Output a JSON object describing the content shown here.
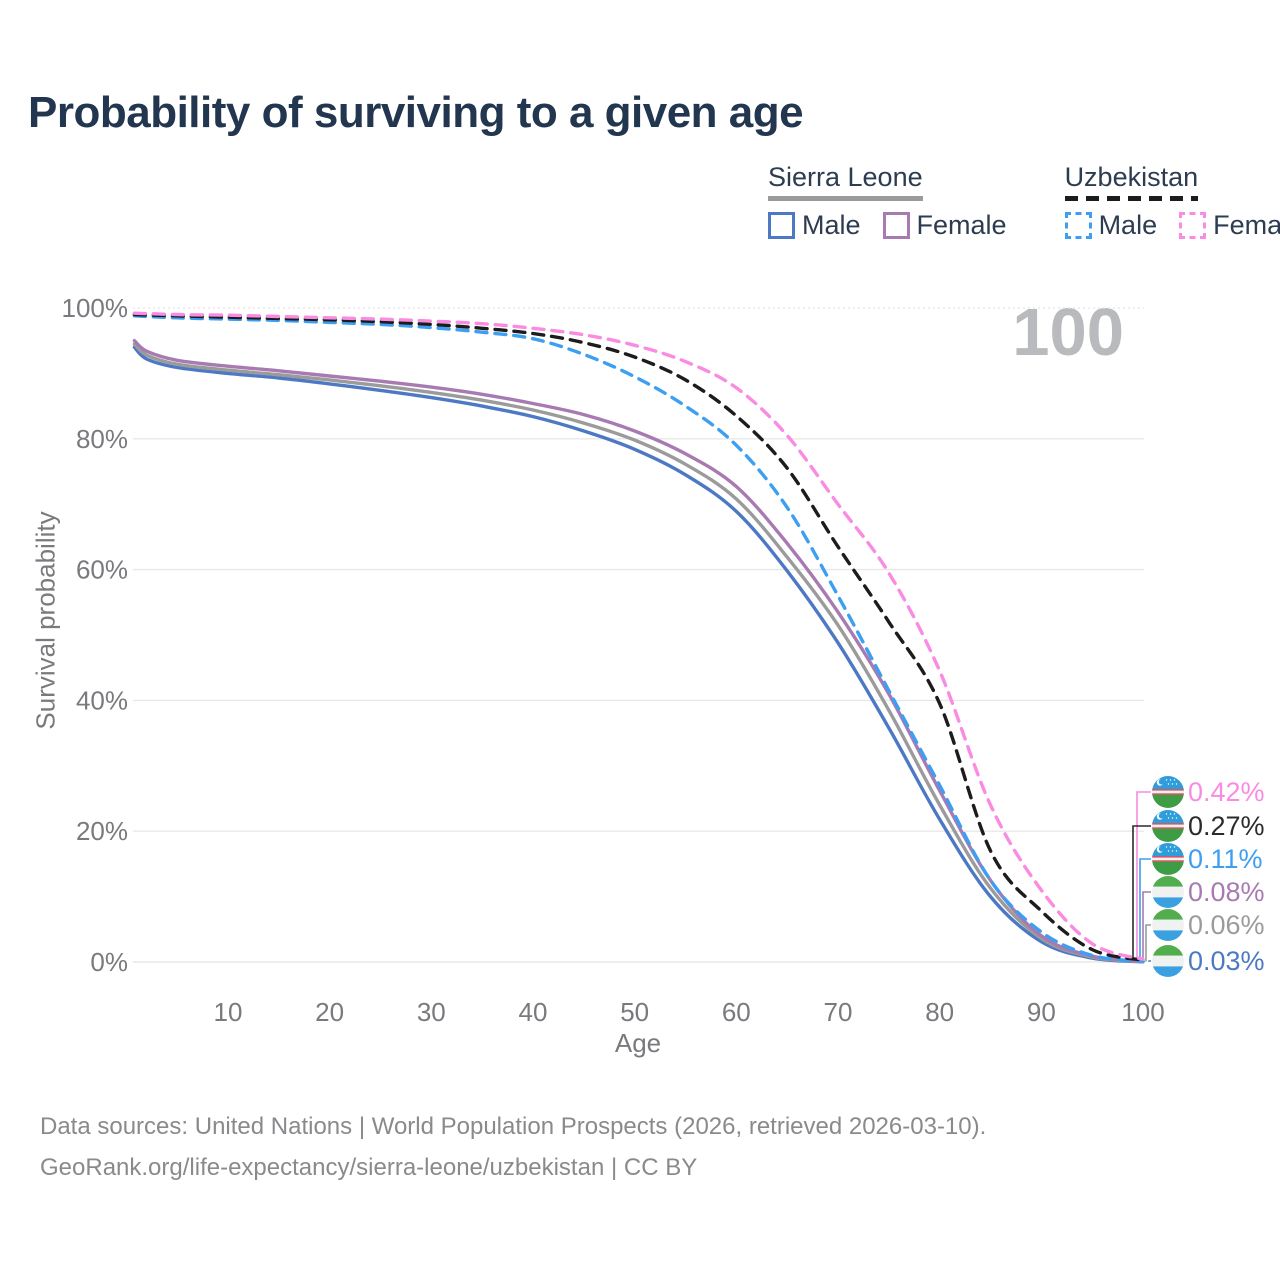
{
  "title": "Probability of surviving to a given age",
  "watermark_age": "100",
  "legend": {
    "groups": [
      {
        "name": "Sierra Leone",
        "underline_style": "solid",
        "underline_color": "#9b9b9b",
        "items": [
          {
            "label": "Male",
            "color": "#4d79c4",
            "dashed": false
          },
          {
            "label": "Female",
            "color": "#a87ab2",
            "dashed": false
          }
        ]
      },
      {
        "name": "Uzbekistan",
        "underline_style": "dashed",
        "underline_color": "#1c1c1c",
        "items": [
          {
            "label": "Male",
            "color": "#3d9ff2",
            "dashed": true
          },
          {
            "label": "Female",
            "color": "#f98ce2",
            "dashed": true
          }
        ]
      }
    ]
  },
  "axes": {
    "y_label": "Survival probability",
    "x_label": "Age",
    "y_ticks": [
      {
        "label": "100%",
        "value": 100
      },
      {
        "label": "80%",
        "value": 80
      },
      {
        "label": "60%",
        "value": 60
      },
      {
        "label": "40%",
        "value": 40
      },
      {
        "label": "20%",
        "value": 20
      },
      {
        "label": "0%",
        "value": 0
      }
    ],
    "x_ticks": [
      10,
      20,
      30,
      40,
      50,
      60,
      70,
      80,
      90,
      100
    ]
  },
  "chart_data": {
    "type": "line",
    "title": "Probability of surviving to a given age",
    "xlabel": "Age",
    "ylabel": "Survival probability",
    "xlim": [
      0,
      100
    ],
    "ylim": [
      0,
      100
    ],
    "grid": true,
    "legend_position": "top-right",
    "series": [
      {
        "name": "Sierra Leone Male",
        "country": "Sierra Leone",
        "sex": "male",
        "color": "#4d79c4",
        "dashed": false,
        "x": [
          0.8,
          2,
          5,
          10,
          15,
          20,
          25,
          30,
          35,
          40,
          45,
          50,
          55,
          60,
          65,
          70,
          75,
          80,
          85,
          90,
          95,
          100
        ],
        "y": [
          94.0,
          92.2,
          90.9,
          90.0,
          89.3,
          88.4,
          87.4,
          86.3,
          85.0,
          83.4,
          81.2,
          78.4,
          74.5,
          68.9,
          59.8,
          48.8,
          35.8,
          21.8,
          10.0,
          3.1,
          0.6,
          0.03
        ]
      },
      {
        "name": "Sierra Leone Both sexes",
        "country": "Sierra Leone",
        "sex": "both",
        "color": "#9b9b9b",
        "dashed": false,
        "x": [
          0.8,
          2,
          5,
          10,
          15,
          20,
          25,
          30,
          35,
          40,
          45,
          50,
          55,
          60,
          65,
          70,
          75,
          80,
          85,
          90,
          95,
          100
        ],
        "y": [
          94.5,
          92.8,
          91.4,
          90.5,
          89.8,
          89.0,
          88.1,
          87.1,
          85.9,
          84.4,
          82.4,
          79.8,
          76.1,
          70.8,
          61.9,
          51.5,
          38.5,
          24.0,
          11.3,
          3.6,
          0.75,
          0.06
        ]
      },
      {
        "name": "Sierra Leone Female",
        "country": "Sierra Leone",
        "sex": "female",
        "color": "#a87ab2",
        "dashed": false,
        "x": [
          0.8,
          2,
          5,
          10,
          15,
          20,
          25,
          30,
          35,
          40,
          45,
          50,
          55,
          60,
          65,
          70,
          75,
          80,
          85,
          90,
          95,
          100
        ],
        "y": [
          95.0,
          93.4,
          92.0,
          91.1,
          90.4,
          89.6,
          88.8,
          87.9,
          86.8,
          85.4,
          83.7,
          81.2,
          77.7,
          72.7,
          64.0,
          53.5,
          41.0,
          26.2,
          12.5,
          4.0,
          0.9,
          0.08
        ]
      },
      {
        "name": "Uzbekistan Male",
        "country": "Uzbekistan",
        "sex": "male",
        "color": "#3d9ff2",
        "dashed": true,
        "x": [
          0.8,
          5,
          10,
          15,
          20,
          25,
          30,
          35,
          40,
          45,
          50,
          55,
          60,
          65,
          70,
          75,
          80,
          85,
          90,
          95,
          100
        ],
        "y": [
          98.8,
          98.5,
          98.3,
          98.1,
          97.8,
          97.5,
          97.0,
          96.3,
          95.3,
          92.9,
          89.5,
          85.0,
          79.0,
          69.5,
          56.0,
          41.5,
          27.0,
          12.5,
          4.6,
          1.0,
          0.11
        ]
      },
      {
        "name": "Uzbekistan Both sexes",
        "country": "Uzbekistan",
        "sex": "both",
        "color": "#1c1c1c",
        "dashed": true,
        "x": [
          0.8,
          5,
          10,
          15,
          20,
          25,
          30,
          35,
          40,
          45,
          50,
          55,
          60,
          65,
          70,
          75,
          80,
          85,
          90,
          95,
          100
        ],
        "y": [
          99.0,
          98.8,
          98.6,
          98.4,
          98.2,
          97.9,
          97.5,
          96.9,
          96.1,
          94.7,
          92.5,
          89.0,
          83.5,
          75.5,
          63.5,
          52.0,
          39.5,
          17.0,
          7.8,
          1.9,
          0.27
        ]
      },
      {
        "name": "Uzbekistan Female",
        "country": "Uzbekistan",
        "sex": "female",
        "color": "#f98ce2",
        "dashed": true,
        "x": [
          0.8,
          5,
          10,
          15,
          20,
          25,
          30,
          35,
          40,
          45,
          50,
          55,
          60,
          65,
          70,
          75,
          80,
          85,
          90,
          95,
          100
        ],
        "y": [
          99.2,
          99.0,
          98.9,
          98.7,
          98.5,
          98.3,
          98.0,
          97.6,
          96.9,
          95.9,
          94.3,
          91.8,
          87.8,
          80.5,
          70.0,
          59.5,
          44.5,
          24.0,
          11.0,
          2.8,
          0.42
        ]
      }
    ]
  },
  "end_labels": [
    {
      "value": "0.42%",
      "color": "#f98ce2",
      "flag": "uz",
      "series": "Uzbekistan Female"
    },
    {
      "value": "0.27%",
      "color": "#2b2b2b",
      "flag": "uz",
      "series": "Uzbekistan Both sexes"
    },
    {
      "value": "0.11%",
      "color": "#3d9ff2",
      "flag": "uz",
      "series": "Uzbekistan Male"
    },
    {
      "value": "0.08%",
      "color": "#a87ab2",
      "flag": "sl",
      "series": "Sierra Leone Female"
    },
    {
      "value": "0.06%",
      "color": "#9b9b9b",
      "flag": "sl",
      "series": "Sierra Leone Both sexes"
    },
    {
      "value": "0.03%",
      "color": "#4d79c4",
      "flag": "sl",
      "series": "Sierra Leone Male"
    }
  ],
  "flag_colors": {
    "uz": {
      "top": "#2f9ddb",
      "band": "#eef1f2",
      "band_edge": "#d23b48",
      "bottom": "#3e9c45"
    },
    "sl": {
      "top": "#51ad4e",
      "middle": "#f0f2f2",
      "bottom": "#3ba0e0"
    }
  },
  "footer": {
    "line1": "Data sources: United Nations | World Population Prospects (2026, retrieved 2026-03-10).",
    "line2": "GeoRank.org/life-expectancy/sierra-leone/uzbekistan | CC BY"
  }
}
